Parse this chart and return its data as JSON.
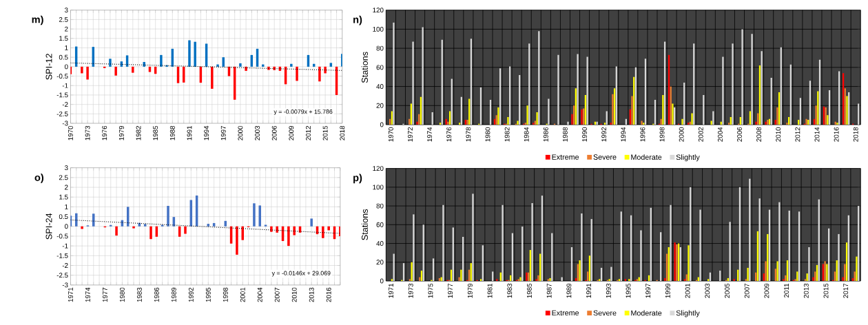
{
  "chart_data": [
    {
      "type": "bar",
      "title": "m)",
      "ylabel": "SPI-12",
      "xlim": [
        1970,
        2018
      ],
      "ylim": [
        -3,
        3
      ],
      "grid": true,
      "yticks": [
        -3,
        -2.5,
        -2,
        -1.5,
        -1,
        -0.5,
        0,
        0.5,
        1,
        1.5,
        2,
        2.5,
        3
      ],
      "xticks": [
        1970,
        {
          "value": 1971,
          "label": null
        },
        {
          "value": 1972,
          "label": null
        },
        1973,
        {
          "value": 1974,
          "label": null
        },
        {
          "value": 1975,
          "label": null
        },
        1976,
        {
          "value": 1977,
          "label": null
        },
        {
          "value": 1978,
          "label": null
        },
        1979,
        {
          "value": 1980,
          "label": null
        },
        {
          "value": 1981,
          "label": null
        },
        1982,
        {
          "value": 1983,
          "label": null
        },
        {
          "value": 1984,
          "label": null
        },
        1985,
        {
          "value": 1986,
          "label": null
        },
        {
          "value": 1987,
          "label": null
        },
        1988,
        {
          "value": 1989,
          "label": null
        },
        {
          "value": 1990,
          "label": null
        },
        1991,
        {
          "value": 1992,
          "label": null
        },
        {
          "value": 1993,
          "label": null
        },
        1994,
        {
          "value": 1995,
          "label": null
        },
        {
          "value": 1996,
          "label": null
        },
        1997,
        {
          "value": 1998,
          "label": null
        },
        {
          "value": 1999,
          "label": null
        },
        2000,
        {
          "value": 2001,
          "label": null
        },
        {
          "value": 2002,
          "label": null
        },
        2003,
        {
          "value": 2004,
          "label": null
        },
        {
          "value": 2005,
          "label": null
        },
        2006,
        {
          "value": 2007,
          "label": null
        },
        {
          "value": 2008,
          "label": null
        },
        2009,
        {
          "value": 2010,
          "label": null
        },
        {
          "value": 2011,
          "label": null
        },
        2012,
        {
          "value": 2013,
          "label": null
        },
        {
          "value": 2014,
          "label": null
        },
        2015,
        {
          "value": 2016,
          "label": null
        },
        {
          "value": 2017,
          "label": null
        },
        2018
      ],
      "x": [
        1970,
        1971,
        1972,
        1973,
        1974,
        1975,
        1976,
        1977,
        1978,
        1979,
        1980,
        1981,
        1982,
        1983,
        1984,
        1985,
        1986,
        1987,
        1988,
        1989,
        1990,
        1991,
        1992,
        1993,
        1994,
        1995,
        1996,
        1997,
        1998,
        1999,
        2000,
        2001,
        2002,
        2003,
        2004,
        2005,
        2006,
        2007,
        2008,
        2009,
        2010,
        2011,
        2012,
        2013,
        2014,
        2015,
        2016,
        2017,
        2018
      ],
      "series": [
        {
          "type": "bar",
          "values": [
            -0.4,
            1.07,
            -0.35,
            -0.68,
            1.05,
            null,
            -0.07,
            0.42,
            -0.47,
            0.28,
            0.6,
            -0.32,
            null,
            0.25,
            -0.28,
            -0.38,
            0.62,
            0.08,
            0.95,
            -0.87,
            -0.84,
            1.4,
            1.32,
            -0.85,
            1.22,
            -1.17,
            0.12,
            0.5,
            -0.5,
            -1.75,
            0.18,
            -0.22,
            0.62,
            0.95,
            0.12,
            -0.17,
            -0.18,
            -0.22,
            -0.93,
            0.15,
            -0.75,
            null,
            0.62,
            0.15,
            -0.78,
            -0.35,
            0.2,
            -1.5,
            0.68
          ],
          "colors": [
            "#ff0000",
            "#0070c0",
            "#ff0000",
            "#ff0000",
            "#0070c0",
            null,
            "#ff0000",
            "#0070c0",
            "#ff0000",
            "#0070c0",
            "#0070c0",
            "#ff0000",
            null,
            "#0070c0",
            "#ff0000",
            "#ff0000",
            "#0070c0",
            "#0070c0",
            "#0070c0",
            "#ff0000",
            "#ff0000",
            "#0070c0",
            "#0070c0",
            "#ff0000",
            "#0070c0",
            "#ff0000",
            "#0070c0",
            "#0070c0",
            "#ff0000",
            "#ff0000",
            "#0070c0",
            "#ff0000",
            "#0070c0",
            "#0070c0",
            "#0070c0",
            "#ff0000",
            "#ff0000",
            "#ff0000",
            "#ff0000",
            "#0070c0",
            "#ff0000",
            null,
            "#0070c0",
            "#0070c0",
            "#ff0000",
            "#ff0000",
            "#0070c0",
            "#ff0000",
            "#0070c0"
          ]
        },
        {
          "type": "line",
          "x": [
            1970,
            2018
          ],
          "values": [
            0.2,
            -0.2
          ],
          "color": "#000000",
          "line_style": "dotted"
        }
      ],
      "annotations": [
        "y = -0.0079x + 15.786"
      ]
    },
    {
      "type": "bar",
      "title": "n)",
      "ylabel": "Stations",
      "ylim": [
        0,
        120
      ],
      "yticks": [
        0,
        20,
        40,
        60,
        80,
        100,
        120
      ],
      "grid": true,
      "legend": "bottom",
      "categories": [
        "1970",
        null,
        "1972",
        null,
        "1974",
        null,
        "1976",
        null,
        "1978",
        null,
        "1980",
        null,
        "1982",
        null,
        "1984",
        null,
        "1986",
        null,
        "1988",
        null,
        "1990",
        null,
        "1992",
        null,
        "1994",
        null,
        "1996",
        null,
        "1998",
        null,
        "2000",
        null,
        "2002",
        null,
        "2004",
        null,
        "2006",
        null,
        "2008",
        null,
        "2010",
        null,
        "2012",
        null,
        "2014",
        null,
        "2016",
        null,
        "2018"
      ],
      "series": [
        {
          "name": "Extreme",
          "color": "#ff0000",
          "values": [
            0,
            0,
            0,
            3,
            0,
            0,
            6,
            0,
            5,
            0,
            0,
            6,
            1,
            0,
            1,
            2,
            0,
            0,
            0,
            11,
            16,
            1,
            1,
            2,
            0,
            16,
            0,
            0,
            1,
            73,
            1,
            2,
            0,
            0,
            0,
            0,
            0,
            0,
            3,
            3,
            5,
            0,
            0,
            1,
            6,
            19,
            0,
            54,
            1
          ]
        },
        {
          "name": "Severe",
          "color": "#ed7d31",
          "values": [
            6,
            0,
            6,
            11,
            0,
            0,
            3,
            0,
            5,
            0,
            0,
            10,
            1,
            1,
            2,
            4,
            0,
            1,
            0,
            20,
            17,
            0,
            0,
            32,
            0,
            30,
            4,
            0,
            6,
            40,
            0,
            3,
            0,
            0,
            0,
            2,
            1,
            1,
            12,
            5,
            18,
            2,
            0,
            6,
            20,
            18,
            3,
            38,
            0
          ]
        },
        {
          "name": "Moderate",
          "color": "#ffff00",
          "values": [
            14,
            0,
            22,
            29,
            0,
            2,
            14,
            2,
            27,
            1,
            0,
            18,
            8,
            4,
            20,
            13,
            1,
            0,
            0,
            38,
            31,
            3,
            2,
            38,
            0,
            50,
            2,
            1,
            31,
            22,
            6,
            12,
            0,
            4,
            3,
            8,
            8,
            14,
            62,
            6,
            34,
            8,
            5,
            5,
            35,
            10,
            2,
            30,
            0
          ]
        },
        {
          "name": "Slightly",
          "color": "#d9d9d9",
          "values": [
            107,
            1,
            87,
            102,
            13,
            89,
            48,
            29,
            90,
            39,
            26,
            59,
            61,
            52,
            85,
            98,
            27,
            73,
            3,
            74,
            71,
            3,
            14,
            61,
            6,
            60,
            69,
            26,
            87,
            18,
            44,
            85,
            31,
            14,
            71,
            85,
            100,
            95,
            77,
            49,
            81,
            63,
            28,
            46,
            68,
            36,
            56,
            34,
            22
          ]
        }
      ]
    },
    {
      "type": "bar",
      "title": "o)",
      "ylabel": "SPI-24",
      "xlim": [
        1971,
        2018
      ],
      "ylim": [
        -3,
        3
      ],
      "grid": true,
      "yticks": [
        -3,
        -2.5,
        -2,
        -1.5,
        -1,
        -0.5,
        0,
        0.5,
        1,
        1.5,
        2,
        2.5,
        3
      ],
      "xticks": [
        1971,
        {
          "value": 1972,
          "label": null
        },
        {
          "value": 1973,
          "label": null
        },
        1974,
        {
          "value": 1975,
          "label": null
        },
        {
          "value": 1976,
          "label": null
        },
        1977,
        {
          "value": 1978,
          "label": null
        },
        {
          "value": 1979,
          "label": null
        },
        1980,
        {
          "value": 1981,
          "label": null
        },
        {
          "value": 1982,
          "label": null
        },
        1983,
        {
          "value": 1984,
          "label": null
        },
        {
          "value": 1985,
          "label": null
        },
        1986,
        {
          "value": 1987,
          "label": null
        },
        {
          "value": 1988,
          "label": null
        },
        1989,
        {
          "value": 1990,
          "label": null
        },
        {
          "value": 1991,
          "label": null
        },
        1992,
        {
          "value": 1993,
          "label": null
        },
        {
          "value": 1994,
          "label": null
        },
        1995,
        {
          "value": 1996,
          "label": null
        },
        {
          "value": 1997,
          "label": null
        },
        1998,
        {
          "value": 1999,
          "label": null
        },
        {
          "value": 2000,
          "label": null
        },
        2001,
        {
          "value": 2002,
          "label": null
        },
        {
          "value": 2003,
          "label": null
        },
        2004,
        {
          "value": 2005,
          "label": null
        },
        {
          "value": 2006,
          "label": null
        },
        2007,
        {
          "value": 2008,
          "label": null
        },
        {
          "value": 2009,
          "label": null
        },
        2010,
        {
          "value": 2011,
          "label": null
        },
        {
          "value": 2012,
          "label": null
        },
        2013,
        {
          "value": 2014,
          "label": null
        },
        {
          "value": 2015,
          "label": null
        },
        2016,
        {
          "value": 2017,
          "label": null
        },
        {
          "value": 2018,
          "label": null
        }
      ],
      "x": [
        1971,
        1972,
        1973,
        1974,
        1975,
        1976,
        1977,
        1978,
        1979,
        1980,
        1981,
        1982,
        1983,
        1984,
        1985,
        1986,
        1987,
        1988,
        1989,
        1990,
        1991,
        1992,
        1993,
        1994,
        1995,
        1996,
        1997,
        1998,
        1999,
        2000,
        2001,
        2002,
        2003,
        2004,
        2005,
        2006,
        2007,
        2008,
        2009,
        2010,
        2011,
        2012,
        2013,
        2014,
        2015,
        2016,
        2017,
        2018
      ],
      "series": [
        {
          "type": "bar",
          "values": [
            0.55,
            0.67,
            -0.13,
            0.05,
            0.65,
            null,
            -0.05,
            0.07,
            -0.47,
            0.32,
            1.0,
            -0.1,
            0.18,
            0.12,
            -0.65,
            -0.53,
            0.08,
            1.05,
            0.48,
            -0.53,
            -0.38,
            1.35,
            1.58,
            null,
            0.13,
            0.17,
            null,
            0.28,
            -0.88,
            -1.45,
            -0.7,
            -0.04,
            1.18,
            1.07,
            0.08,
            -0.28,
            -0.32,
            -0.75,
            -1.0,
            -0.45,
            -0.32,
            null,
            0.4,
            -0.4,
            -0.6,
            -0.2,
            -0.65,
            -0.5
          ],
          "colors": [
            "#4472c4",
            "#4472c4",
            "#ff0000",
            "#4472c4",
            "#4472c4",
            null,
            "#ff0000",
            "#4472c4",
            "#ff0000",
            "#4472c4",
            "#4472c4",
            "#ff0000",
            "#4472c4",
            "#4472c4",
            "#ff0000",
            "#ff0000",
            "#4472c4",
            "#4472c4",
            "#4472c4",
            "#ff0000",
            "#ff0000",
            "#4472c4",
            "#4472c4",
            null,
            "#4472c4",
            "#4472c4",
            null,
            "#4472c4",
            "#ff0000",
            "#ff0000",
            "#ff0000",
            "#ff0000",
            "#4472c4",
            "#4472c4",
            "#4472c4",
            "#ff0000",
            "#ff0000",
            "#ff0000",
            "#ff0000",
            "#ff0000",
            "#ff0000",
            null,
            "#4472c4",
            "#ff0000",
            "#ff0000",
            "#ff0000",
            "#ff0000",
            "#ff0000"
          ]
        },
        {
          "type": "line",
          "x": [
            1971,
            2018
          ],
          "values": [
            0.33,
            -0.36
          ],
          "color": "#000000",
          "line_style": "dotted"
        }
      ],
      "annotations": [
        "y = -0.0146x + 29.069"
      ]
    },
    {
      "type": "bar",
      "title": "p)",
      "ylabel": "Stations",
      "ylim": [
        0,
        120
      ],
      "yticks": [
        0,
        20,
        40,
        60,
        80,
        100,
        120
      ],
      "grid": true,
      "legend": "bottom",
      "categories": [
        "1971",
        null,
        "1973",
        null,
        "1975",
        null,
        "1977",
        null,
        "1979",
        null,
        "1981",
        null,
        "1983",
        null,
        "1985",
        null,
        "1987",
        null,
        "1989",
        null,
        "1991",
        null,
        "1993",
        null,
        "1995",
        null,
        "1997",
        null,
        "1999",
        null,
        "2001",
        null,
        "2003",
        null,
        "2005",
        null,
        "2007",
        null,
        "2009",
        null,
        "2011",
        null,
        "2013",
        null,
        "2015",
        null,
        "2017",
        null
      ],
      "series": [
        {
          "name": "Extreme",
          "color": "#ff0000",
          "values": [
            0,
            0,
            0,
            0,
            0,
            0,
            1,
            0,
            1,
            1,
            0,
            2,
            1,
            1,
            9,
            2,
            0,
            0,
            0,
            3,
            1,
            0,
            0,
            0,
            2,
            1,
            1,
            0,
            3,
            41,
            2,
            0,
            0,
            0,
            0,
            2,
            0,
            0,
            8,
            0,
            2,
            1,
            0,
            4,
            18,
            1,
            4,
            3
          ]
        },
        {
          "name": "Severe",
          "color": "#ed7d31",
          "values": [
            0,
            0,
            2,
            4,
            0,
            3,
            1,
            4,
            12,
            0,
            0,
            0,
            1,
            2,
            9,
            6,
            2,
            0,
            0,
            18,
            10,
            1,
            1,
            1,
            0,
            2,
            0,
            1,
            29,
            39,
            7,
            1,
            0,
            0,
            1,
            0,
            2,
            9,
            21,
            13,
            6,
            2,
            2,
            10,
            21,
            10,
            18,
            10
          ]
        },
        {
          "name": "Moderate",
          "color": "#ffff00",
          "values": [
            2,
            1,
            20,
            11,
            1,
            4,
            12,
            12,
            19,
            2,
            0,
            9,
            6,
            4,
            33,
            29,
            3,
            0,
            0,
            22,
            27,
            2,
            2,
            2,
            2,
            4,
            6,
            0,
            36,
            40,
            38,
            4,
            2,
            0,
            3,
            12,
            14,
            53,
            50,
            21,
            22,
            10,
            8,
            17,
            18,
            22,
            41,
            26
          ]
        },
        {
          "name": "Slightly",
          "color": "#d9d9d9",
          "values": [
            29,
            19,
            71,
            60,
            24,
            81,
            57,
            47,
            93,
            38,
            10,
            81,
            51,
            58,
            83,
            91,
            51,
            4,
            36,
            72,
            66,
            14,
            15,
            74,
            70,
            54,
            78,
            52,
            81,
            36,
            100,
            76,
            9,
            11,
            63,
            100,
            109,
            88,
            76,
            84,
            75,
            74,
            36,
            87,
            56,
            50,
            70,
            80
          ]
        }
      ]
    }
  ]
}
